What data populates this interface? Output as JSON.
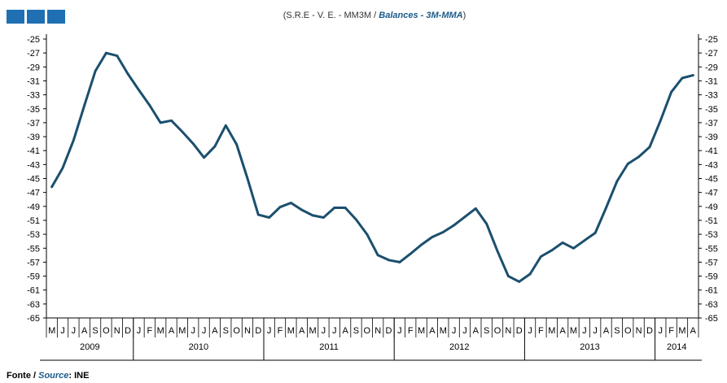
{
  "header": {
    "title_part1": "(S.R.E - V. E. - MM3M / ",
    "title_part2": "Balances - 3M-MMA",
    "title_part3": ")"
  },
  "footer": {
    "source_pt": "Fonte / ",
    "source_en": "Source",
    "source_value": ": INE"
  },
  "colors": {
    "line": "#1b4f6e",
    "logo": "#1f6fb2",
    "axis": "#000000"
  },
  "chart_data": {
    "type": "line",
    "title": "(S.R.E - V. E. - MM3M / Balances - 3M-MMA)",
    "xlabel": "",
    "ylabel": "",
    "ylim": [
      -65,
      -25
    ],
    "yticks": [
      -25,
      -27,
      -29,
      -31,
      -33,
      -35,
      -37,
      -39,
      -41,
      -43,
      -45,
      -47,
      -49,
      -51,
      -53,
      -55,
      -57,
      -59,
      -61,
      -63,
      -65
    ],
    "grid": false,
    "legend": "none",
    "month_labels": [
      "M",
      "J",
      "J",
      "A",
      "S",
      "O",
      "N",
      "D",
      "J",
      "F",
      "M",
      "A",
      "M",
      "J",
      "J",
      "A",
      "S",
      "O",
      "N",
      "D",
      "J",
      "F",
      "M",
      "A",
      "M",
      "J",
      "J",
      "A",
      "S",
      "O",
      "N",
      "D",
      "J",
      "F",
      "M",
      "A",
      "M",
      "J",
      "J",
      "A",
      "S",
      "O",
      "N",
      "D",
      "J",
      "F",
      "M",
      "A",
      "M",
      "J",
      "J",
      "A",
      "S",
      "O",
      "N",
      "D",
      "J",
      "F",
      "M",
      "A"
    ],
    "year_groups": [
      {
        "label": "2009",
        "months": 8
      },
      {
        "label": "2010",
        "months": 12
      },
      {
        "label": "2011",
        "months": 12
      },
      {
        "label": "2012",
        "months": 12
      },
      {
        "label": "2013",
        "months": 12
      },
      {
        "label": "2014",
        "months": 4
      }
    ],
    "series": [
      {
        "values": [
          -46.2,
          -43.5,
          -39.5,
          -34.5,
          -29.6,
          -27.0,
          -27.4,
          -30.0,
          -32.3,
          -34.5,
          -37.0,
          -36.7,
          -38.3,
          -40.0,
          -42.0,
          -40.4,
          -37.4,
          -40.1,
          -45.0,
          -50.2,
          -50.6,
          -49.1,
          -48.5,
          -49.5,
          -50.3,
          -50.6,
          -49.2,
          -49.2,
          -50.9,
          -53.0,
          -56.0,
          -56.7,
          -57.0,
          -55.8,
          -54.5,
          -53.4,
          -52.7,
          -51.7,
          -50.5,
          -49.3,
          -51.5,
          -55.4,
          -59.0,
          -59.8,
          -58.7,
          -56.2,
          -55.3,
          -54.2,
          -55.0,
          -53.9,
          -52.8,
          -49.2,
          -45.4,
          -42.9,
          -41.9,
          -40.5,
          -36.7,
          -32.6,
          -30.6,
          -30.2
        ]
      }
    ]
  }
}
